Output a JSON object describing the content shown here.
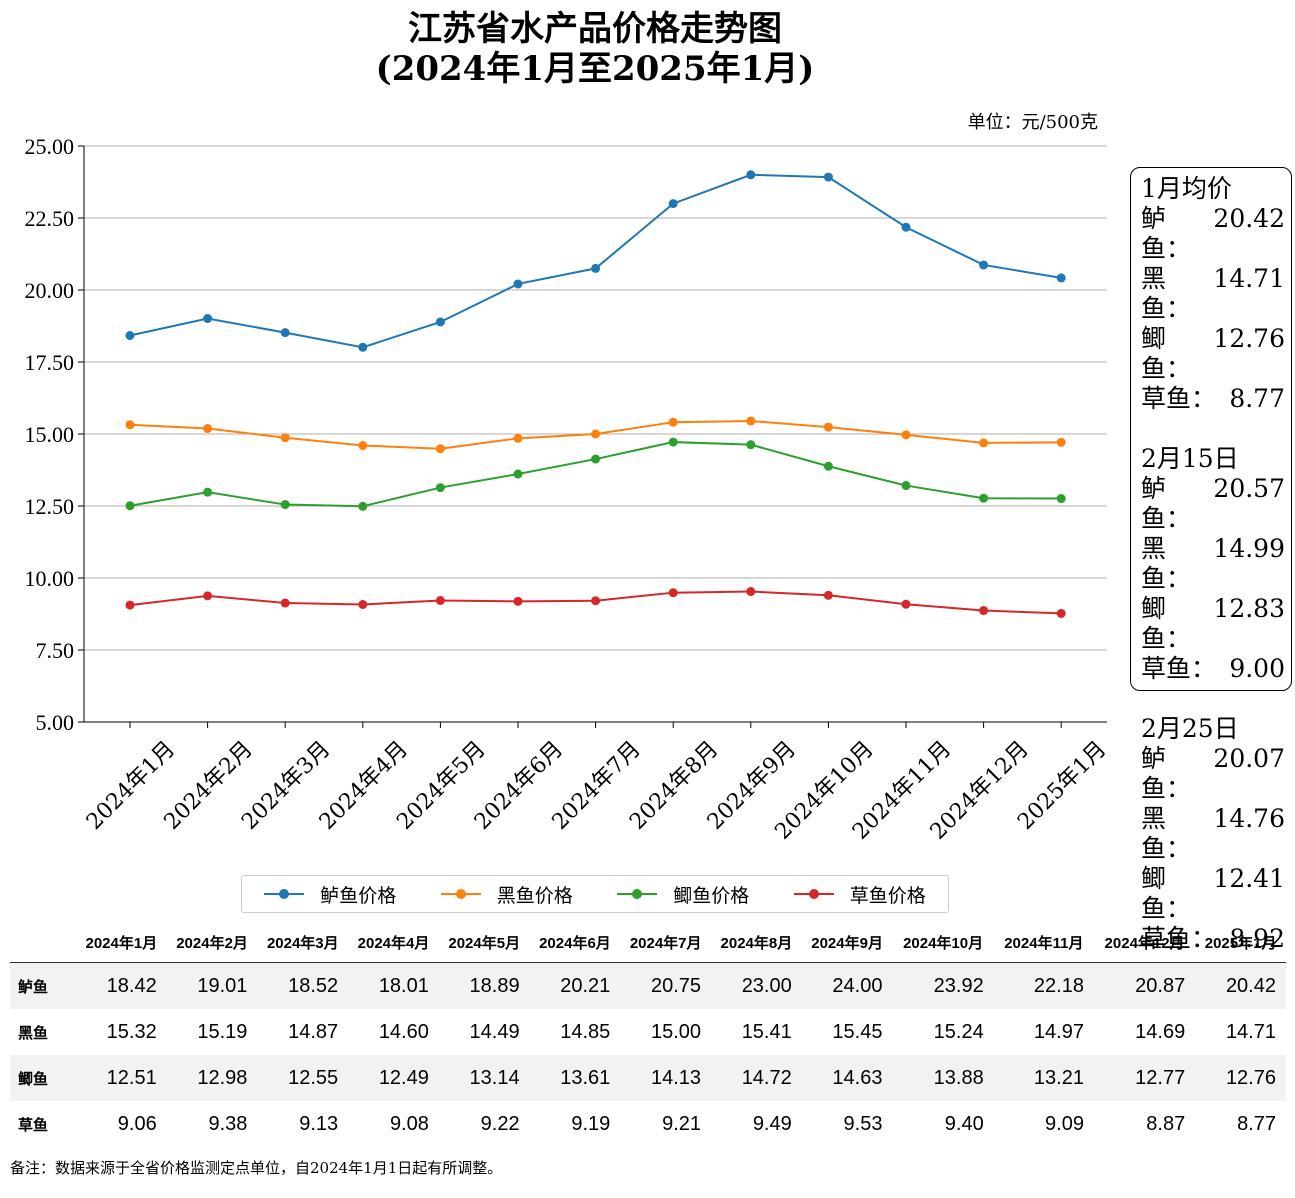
{
  "title_line1": "江苏省水产品价格走势图",
  "title_line2": "(2024年1月至2025年1月)",
  "unit": "单位：元/500克",
  "chart_data": {
    "type": "line",
    "x": [
      "2024年1月",
      "2024年2月",
      "2024年3月",
      "2024年4月",
      "2024年5月",
      "2024年6月",
      "2024年7月",
      "2024年8月",
      "2024年9月",
      "2024年10月",
      "2024年11月",
      "2024年12月",
      "2025年1月"
    ],
    "ylim": [
      5.0,
      25.0
    ],
    "yticks": [
      "5.00",
      "7.50",
      "10.00",
      "12.50",
      "15.00",
      "17.50",
      "20.00",
      "22.50",
      "25.00"
    ],
    "grid": "horizontal",
    "legend_position": "bottom",
    "series": [
      {
        "name": "鲈鱼价格",
        "row_label": "鲈鱼",
        "color": "#1f77b4",
        "values": [
          18.42,
          19.01,
          18.52,
          18.01,
          18.89,
          20.21,
          20.75,
          23.0,
          24.0,
          23.92,
          22.18,
          20.87,
          20.42
        ]
      },
      {
        "name": "黑鱼价格",
        "row_label": "黑鱼",
        "color": "#ff7f0e",
        "values": [
          15.32,
          15.19,
          14.87,
          14.6,
          14.49,
          14.85,
          15.0,
          15.41,
          15.45,
          15.24,
          14.97,
          14.69,
          14.71
        ]
      },
      {
        "name": "鲫鱼价格",
        "row_label": "鲫鱼",
        "color": "#2ca02c",
        "values": [
          12.51,
          12.98,
          12.55,
          12.49,
          13.14,
          13.61,
          14.13,
          14.72,
          14.63,
          13.88,
          13.21,
          12.77,
          12.76
        ]
      },
      {
        "name": "草鱼价格",
        "row_label": "草鱼",
        "color": "#d62728",
        "values": [
          9.06,
          9.38,
          9.13,
          9.08,
          9.22,
          9.19,
          9.21,
          9.49,
          9.53,
          9.4,
          9.09,
          8.87,
          8.77
        ]
      }
    ]
  },
  "side_panel": [
    {
      "title": "1月均价",
      "rows": [
        {
          "label": "鲈鱼：",
          "value": "20.42"
        },
        {
          "label": "黑鱼：",
          "value": "14.71"
        },
        {
          "label": "鲫鱼：",
          "value": "12.76"
        },
        {
          "label": "草鱼：",
          "value": "8.77"
        }
      ]
    },
    {
      "title": "2月15日",
      "rows": [
        {
          "label": "鲈鱼：",
          "value": "20.57"
        },
        {
          "label": "黑鱼：",
          "value": "14.99"
        },
        {
          "label": "鲫鱼：",
          "value": "12.83"
        },
        {
          "label": "草鱼：",
          "value": "9.00"
        }
      ]
    },
    {
      "title": "2月25日",
      "rows": [
        {
          "label": "鲈鱼：",
          "value": "20.07"
        },
        {
          "label": "黑鱼：",
          "value": "14.76"
        },
        {
          "label": "鲫鱼：",
          "value": "12.41"
        },
        {
          "label": "草鱼：",
          "value": "8.92"
        }
      ]
    }
  ],
  "note": "备注：数据来源于全省价格监测定点单位，自2024年1月1日起有所调整。"
}
